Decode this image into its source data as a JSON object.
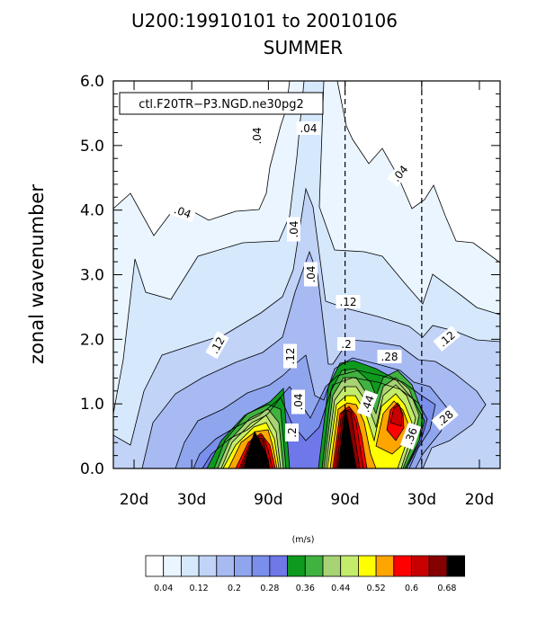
{
  "chart_data": {
    "type": "filled-contour",
    "title": "U200:19910101 to 20010106",
    "subtitle": "SUMMER",
    "case_label": "ctl.F20TR−P3.NGD.ne30pg2",
    "ylabel": "zonal wavenumber",
    "xlabel": "",
    "units": "(m/s)",
    "ylim": [
      0.0,
      6.0
    ],
    "y_ticks": [
      "0.0",
      "1.0",
      "2.0",
      "3.0",
      "4.0",
      "5.0",
      "6.0"
    ],
    "x_ticks": [
      "20d",
      "30d",
      "90d",
      "90d",
      "30d",
      "20d"
    ],
    "x_positions": [
      -0.05,
      -0.0333,
      -0.0111,
      0.0111,
      0.0333,
      0.05
    ],
    "dashed_lines_at": [
      0.0111,
      0.0333
    ],
    "contour_interval": 0.04,
    "contour_levels": [
      0.04,
      0.08,
      0.12,
      0.16,
      0.2,
      0.24,
      0.28,
      0.32,
      0.36,
      0.4,
      0.44,
      0.48,
      0.52,
      0.56,
      0.6,
      0.64,
      0.68
    ],
    "colorbar_labels": [
      "0.04",
      "0.12",
      "0.2",
      "0.28",
      "0.36",
      "0.44",
      "0.52",
      "0.6",
      "0.68"
    ],
    "colors": [
      "#ffffff",
      "#eaf5ff",
      "#d6e8fc",
      "#c1d3f7",
      "#a7baf2",
      "#8fa5ee",
      "#7a8feb",
      "#6e78e8",
      "#0f9a1f",
      "#40b23f",
      "#a8d374",
      "#c4ec6c",
      "#ffff00",
      "#ffa500",
      "#ff0000",
      "#c90000",
      "#850000",
      "#000000"
    ],
    "contour_annotations": [
      ".04",
      ".04",
      ".04",
      ".04",
      ".04",
      ".04",
      ".04",
      ".12",
      ".12",
      ".12",
      ".12",
      ".2",
      ".2",
      ".28",
      ".28",
      ".44",
      ".36"
    ]
  }
}
